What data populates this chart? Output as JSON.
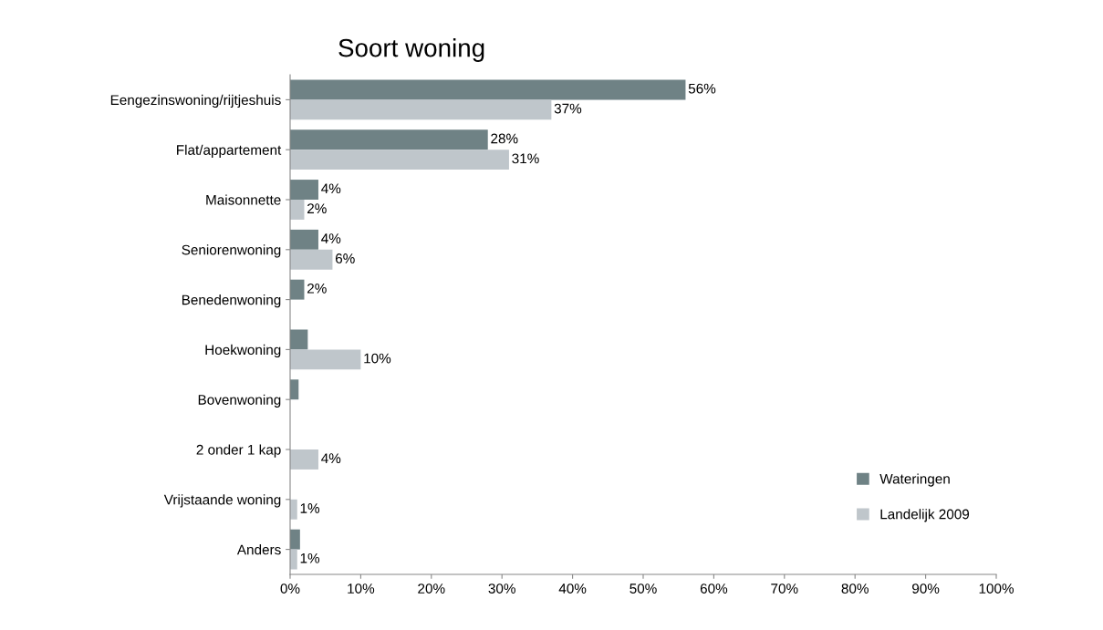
{
  "chart_data": {
    "type": "bar",
    "orientation": "horizontal",
    "title": "Soort woning",
    "categories": [
      "Eengezinswoning/rijtjeshuis",
      "Flat/appartement",
      "Maisonnette",
      "Seniorenwoning",
      "Benedenwoning",
      "Hoekwoning",
      "Bovenwoning",
      "2 onder 1 kap",
      "Vrijstaande woning",
      "Anders"
    ],
    "series": [
      {
        "name": "Wateringen",
        "color": "#6f8285",
        "values": [
          56,
          28,
          4,
          4,
          2,
          2.5,
          1.2,
          0,
          0,
          1.4
        ],
        "value_labels": [
          "56%",
          "28%",
          "4%",
          "4%",
          "2%",
          null,
          null,
          null,
          null,
          null
        ]
      },
      {
        "name": "Landelijk 2009",
        "color": "#bfc6cb",
        "values": [
          37,
          31,
          2,
          6,
          0,
          10,
          0,
          4,
          1,
          1
        ],
        "value_labels": [
          "37%",
          "31%",
          "2%",
          "6%",
          null,
          "10%",
          null,
          "4%",
          "1%",
          "1%"
        ]
      }
    ],
    "xlim": [
      0,
      100
    ],
    "xticks": [
      {
        "value": 0,
        "label": "0%"
      },
      {
        "value": 10,
        "label": "10%"
      },
      {
        "value": 20,
        "label": "20%"
      },
      {
        "value": 30,
        "label": "30%"
      },
      {
        "value": 40,
        "label": "40%"
      },
      {
        "value": 50,
        "label": "50%"
      },
      {
        "value": 60,
        "label": "60%"
      },
      {
        "value": 70,
        "label": "70%"
      },
      {
        "value": 80,
        "label": "80%"
      },
      {
        "value": 90,
        "label": "90%"
      },
      {
        "value": 100,
        "label": "100%"
      }
    ],
    "grid": false,
    "legend": "bottom right"
  }
}
